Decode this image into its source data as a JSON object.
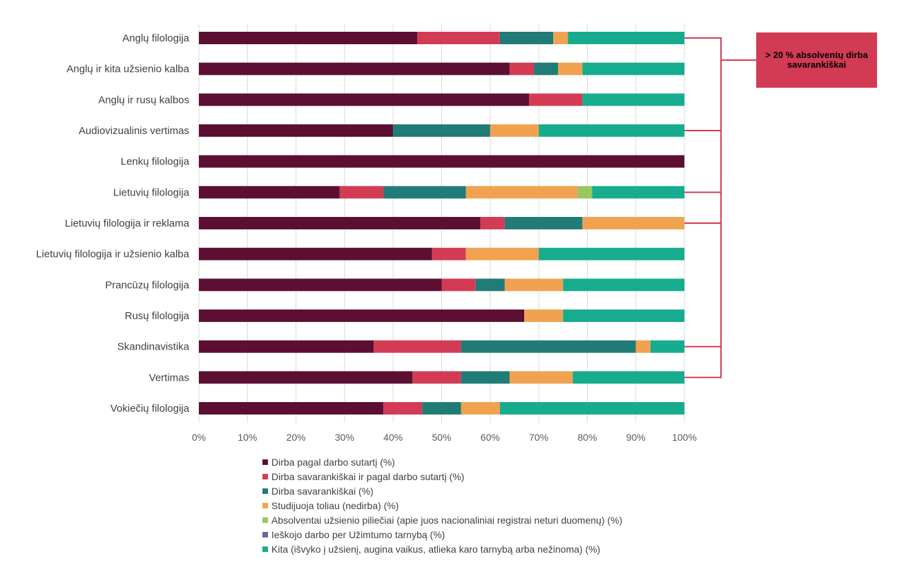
{
  "chart_data": {
    "type": "bar",
    "orientation": "horizontal",
    "stacked": true,
    "categories": [
      "Anglų filologija",
      "Anglų ir kita užsienio kalba",
      "Anglų ir rusų kalbos",
      "Audiovizualinis vertimas",
      "Lenkų filologija",
      "Lietuvių filologija",
      "Lietuvių filologija ir reklama",
      "Lietuvių filologija ir užsienio kalba",
      "Prancūzų filologija",
      "Rusų filologija",
      "Skandinavistika",
      "Vertimas",
      "Vokiečių filologija"
    ],
    "series": [
      {
        "name": "Dirba pagal darbo sutartį (%)",
        "color": "#5c0f33",
        "values": [
          45,
          64,
          68,
          40,
          100,
          29,
          58,
          48,
          50,
          67,
          36,
          44,
          38
        ]
      },
      {
        "name": "Dirba savarankiškai ir pagal darbo sutartį (%)",
        "color": "#d33b55",
        "values": [
          17,
          5,
          11,
          0,
          0,
          9,
          5,
          7,
          7,
          0,
          18,
          10,
          8
        ]
      },
      {
        "name": "Dirba savarankiškai (%)",
        "color": "#217b76",
        "values": [
          11,
          5,
          0,
          20,
          0,
          17,
          16,
          0,
          6,
          0,
          36,
          10,
          8
        ]
      },
      {
        "name": "Studijuoja toliau (nedirba) (%)",
        "color": "#f1a250",
        "values": [
          3,
          5,
          0,
          10,
          0,
          23,
          21,
          15,
          12,
          8,
          3,
          13,
          8
        ]
      },
      {
        "name": "Absolventai užsienio piliečiai (apie juos nacionaliniai registrai neturi duomenų) (%)",
        "color": "#97c662",
        "values": [
          0,
          0,
          0,
          0,
          0,
          3,
          0,
          0,
          0,
          0,
          0,
          0,
          0
        ]
      },
      {
        "name": "Ieškojo darbo per Užimtumo tarnybą (%)",
        "color": "#7260a3",
        "values": [
          0,
          0,
          0,
          0,
          0,
          0,
          0,
          0,
          0,
          0,
          0,
          0,
          0
        ]
      },
      {
        "name": "Kita (išvyko į užsienį, augina vaikus, atlieka karo tarnybą arba nežinoma) (%)",
        "color": "#17ac8e",
        "values": [
          24,
          21,
          21,
          30,
          0,
          19,
          0,
          30,
          25,
          25,
          7,
          23,
          38
        ]
      }
    ],
    "x_ticks": [
      "0%",
      "10%",
      "20%",
      "30%",
      "40%",
      "50%",
      "60%",
      "70%",
      "80%",
      "90%",
      "100%"
    ],
    "xlim": [
      0,
      100
    ],
    "grid": true,
    "legend_position": "bottom",
    "annotation": {
      "text": "> 20 % absolventų dirba savarankiškai",
      "color": "#d33b55",
      "categories": [
        "Anglų filologija",
        "Audiovizualinis vertimas",
        "Lietuvių filologija",
        "Lietuvių filologija ir reklama",
        "Skandinavistika",
        "Vertimas"
      ]
    }
  }
}
